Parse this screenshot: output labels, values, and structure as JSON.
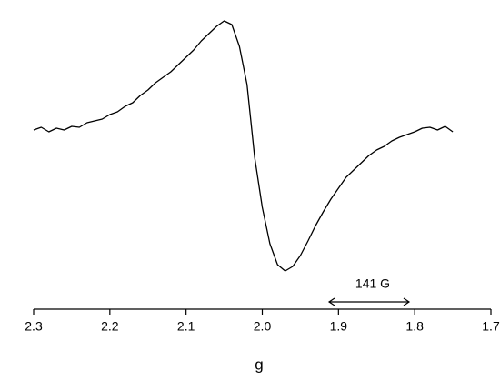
{
  "chart_data": {
    "type": "line",
    "x_label": "g",
    "annotation": "141 G",
    "xlim": [
      2.3,
      1.7
    ],
    "xticks": [
      2.3,
      2.2,
      2.1,
      {
        "value": 2,
        "label": "2.0"
      },
      1.9,
      1.8,
      1.7
    ],
    "ylim": [
      -170,
      140
    ],
    "x": [
      2.3,
      2.29,
      2.28,
      2.27,
      2.26,
      2.25,
      2.24,
      2.23,
      2.22,
      2.21,
      2.2,
      2.19,
      2.18,
      2.17,
      2.16,
      2.15,
      2.14,
      2.13,
      2.12,
      2.11,
      2.1,
      2.09,
      2.08,
      2.07,
      2.06,
      2.05,
      2.04,
      2.03,
      2.02,
      2.01,
      2.0,
      1.99,
      1.98,
      1.97,
      1.96,
      1.95,
      1.94,
      1.93,
      1.92,
      1.91,
      1.9,
      1.89,
      1.88,
      1.87,
      1.86,
      1.85,
      1.84,
      1.83,
      1.82,
      1.81,
      1.8,
      1.79,
      1.78,
      1.77,
      1.76,
      1.75
    ],
    "series": [
      {
        "color": "#000000",
        "values": [
          0,
          3,
          -2,
          2,
          0,
          4,
          3,
          8,
          10,
          12,
          17,
          20,
          26,
          30,
          38,
          44,
          52,
          58,
          64,
          72,
          80,
          88,
          98,
          106,
          114,
          120,
          116,
          92,
          50,
          -30,
          -85,
          -125,
          -148,
          -155,
          -150,
          -138,
          -122,
          -105,
          -90,
          -76,
          -64,
          -52,
          -44,
          -36,
          -28,
          -22,
          -18,
          -12,
          -8,
          -5,
          -2,
          2,
          3,
          0,
          4,
          -2
        ]
      }
    ]
  }
}
